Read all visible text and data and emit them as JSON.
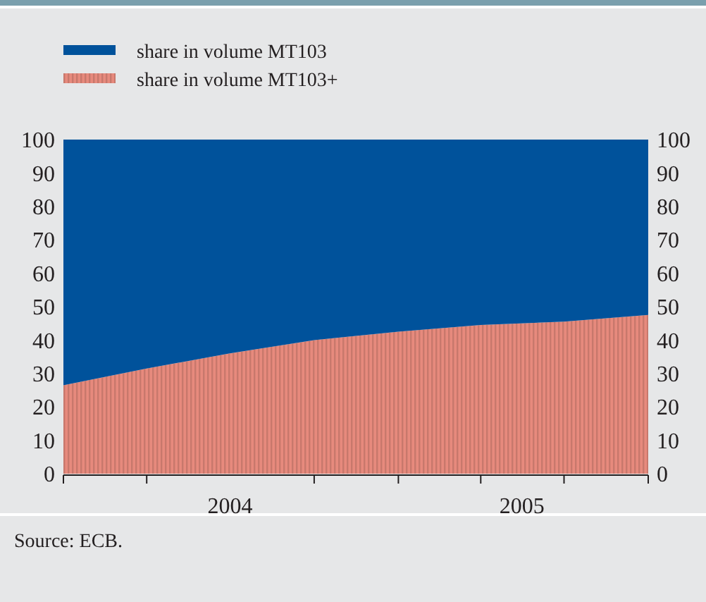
{
  "chart_data": {
    "type": "area",
    "stacked": true,
    "x": [
      "2004-01",
      "2004-04",
      "2004-07",
      "2004-10",
      "2005-01",
      "2005-04",
      "2005-07",
      "2005-10"
    ],
    "series": [
      {
        "name": "share in volume MT103+",
        "color": "#c8786c",
        "values": [
          26.5,
          31.5,
          36,
          40,
          42.5,
          44.5,
          45.5,
          47.5
        ]
      },
      {
        "name": "share in volume MT103",
        "color": "#00529b",
        "values": [
          73.5,
          68.5,
          64,
          60,
          57.5,
          55.5,
          54.5,
          52.5
        ]
      }
    ],
    "xlim": [
      "2004-01",
      "2005-10"
    ],
    "xticks": [
      {
        "value": "2004-01",
        "label": null
      },
      {
        "value": "2004-04",
        "label": null
      },
      {
        "value": "2004-07",
        "label": "2004"
      },
      {
        "value": "2004-10",
        "label": null
      },
      {
        "value": "2005-01",
        "label": null
      },
      {
        "value": "2005-04",
        "label": null
      },
      {
        "value": "2005-05-16",
        "label": "2005"
      },
      {
        "value": "2005-07",
        "label": null
      },
      {
        "value": "2005-10",
        "label": null
      }
    ],
    "ylim": [
      0,
      100
    ],
    "yticks": [
      0,
      10,
      20,
      30,
      40,
      50,
      60,
      70,
      80,
      90,
      100
    ],
    "y2lim": [
      0,
      100
    ],
    "y2ticks": [
      0,
      10,
      20,
      30,
      40,
      50,
      60,
      70,
      80,
      90,
      100
    ],
    "legend": "top",
    "annotations": [
      "Source: ECB."
    ]
  }
}
